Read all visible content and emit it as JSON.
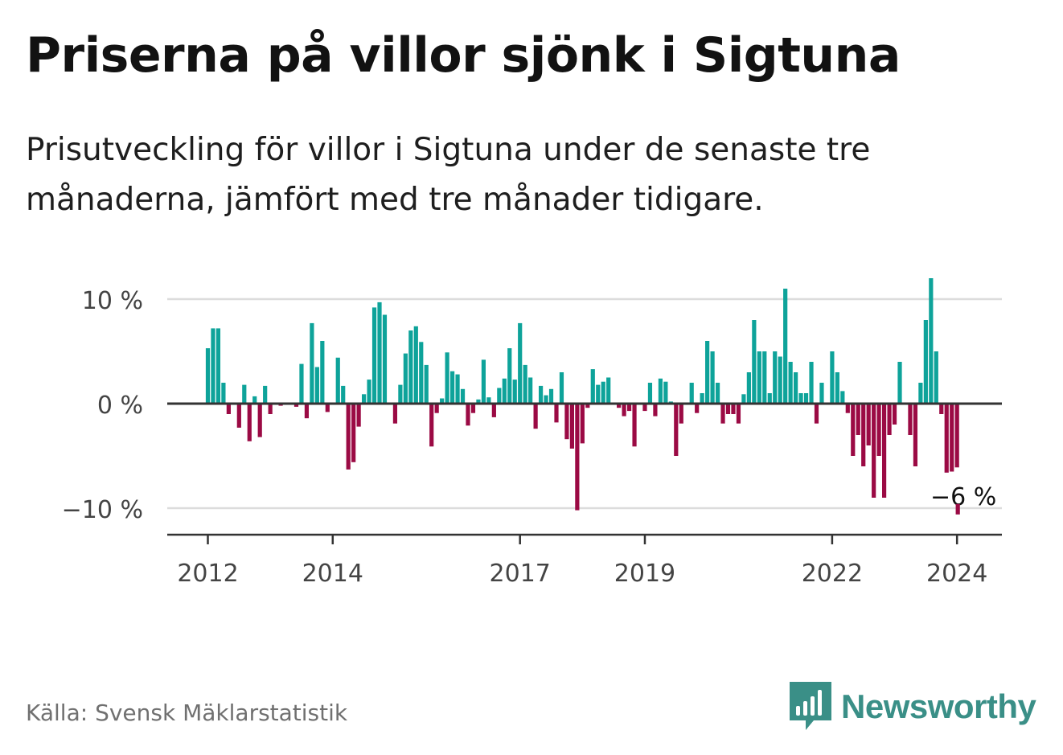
{
  "title": "Priserna på villor sjönk i Sigtuna",
  "subtitle": "Prisutveckling för villor i Sigtuna under de senaste tre månaderna, jämfört med tre månader tidigare.",
  "source": "Källa: Svensk Mäklarstatistik",
  "brand": "Newsworthy",
  "colors": {
    "positive": "#0ea39a",
    "negative": "#9b0a44",
    "grid": "#dcdcdc",
    "axis": "#333333",
    "brand": "#3a8f87"
  },
  "chart_data": {
    "type": "bar",
    "title": "Priserna på villor sjönk i Sigtuna",
    "xlabel": "",
    "ylabel": "",
    "ylim": [
      -12.5,
      10.5
    ],
    "yticks": [
      {
        "value": 10,
        "label": "10 %"
      },
      {
        "value": 0,
        "label": "0 %"
      },
      {
        "value": -10,
        "label": "−10 %"
      }
    ],
    "xticks": [
      {
        "year": 2012,
        "label": "2012"
      },
      {
        "year": 2014,
        "label": "2014"
      },
      {
        "year": 2017,
        "label": "2017"
      },
      {
        "year": 2019,
        "label": "2019"
      },
      {
        "year": 2022,
        "label": "2022"
      },
      {
        "year": 2024,
        "label": "2024"
      }
    ],
    "start": "2012-01",
    "grid": true,
    "annotation": {
      "label": "−6 %",
      "value": -6
    },
    "values": [
      5.3,
      7.2,
      7.2,
      2.0,
      -1.0,
      0.1,
      -2.3,
      1.8,
      -3.6,
      0.7,
      -3.2,
      1.7,
      -1.0,
      0.1,
      -0.2,
      -0.1,
      0.0,
      -0.3,
      3.8,
      -1.4,
      7.7,
      3.5,
      6.0,
      -0.8,
      0.1,
      4.4,
      1.7,
      -6.3,
      -5.6,
      -2.2,
      0.9,
      2.3,
      9.2,
      9.7,
      8.5,
      0.1,
      -1.9,
      1.8,
      4.8,
      7.0,
      7.4,
      5.9,
      3.7,
      -4.1,
      -0.9,
      0.5,
      4.9,
      3.1,
      2.8,
      1.4,
      -2.1,
      -0.9,
      0.4,
      4.2,
      0.6,
      -1.3,
      1.5,
      2.4,
      5.3,
      2.3,
      7.7,
      3.7,
      2.5,
      -2.4,
      1.7,
      0.8,
      1.4,
      -1.8,
      3.0,
      -3.4,
      -4.3,
      -10.2,
      -3.8,
      -0.4,
      3.3,
      1.8,
      2.1,
      2.5,
      0.1,
      -0.4,
      -1.2,
      -0.7,
      -4.1,
      0.1,
      -0.7,
      2.0,
      -1.2,
      2.4,
      2.1,
      0.2,
      -5.0,
      -1.9,
      0.1,
      2.0,
      -0.9,
      1.0,
      6.0,
      5.0,
      2.0,
      -1.9,
      -1.0,
      -1.0,
      -1.9,
      0.9,
      3.0,
      8.0,
      5.0,
      5.0,
      1.0,
      5.0,
      4.5,
      11.0,
      4.0,
      3.0,
      1.0,
      1.0,
      4.0,
      -1.9,
      2.0,
      0.1,
      5.0,
      3.0,
      1.2,
      -0.9,
      -5.0,
      -3.0,
      -6.0,
      -4.0,
      -9.0,
      -5.0,
      -9.0,
      -3.0,
      -2.0,
      4.0,
      0.1,
      -3.0,
      -6.0,
      2.0,
      8.0,
      12.0,
      5.0,
      -1.0,
      -6.6,
      -6.5,
      -6.1,
      0.1
    ]
  }
}
